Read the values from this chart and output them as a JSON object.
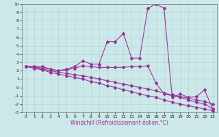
{
  "xlabel": "Windchill (Refroidissement éolien,°C)",
  "bg_color": "#cce8e8",
  "line_color": "#993399",
  "marker": "D",
  "markersize": 2.0,
  "linewidth": 0.8,
  "xlim": [
    -0.5,
    23.5
  ],
  "ylim": [
    -3,
    10
  ],
  "yticks": [
    -3,
    -2,
    -1,
    0,
    1,
    2,
    3,
    4,
    5,
    6,
    7,
    8,
    9,
    10
  ],
  "xticks": [
    0,
    1,
    2,
    3,
    4,
    5,
    6,
    7,
    8,
    9,
    10,
    11,
    12,
    13,
    14,
    15,
    16,
    17,
    18,
    19,
    20,
    21,
    22,
    23
  ],
  "series1": [
    2.5,
    2.5,
    2.5,
    2.2,
    2.0,
    2.2,
    2.5,
    3.2,
    2.8,
    2.8,
    5.5,
    5.5,
    6.5,
    3.5,
    3.5,
    9.5,
    10.0,
    9.5,
    -1.2,
    -0.8,
    -1.2,
    -1.1,
    -0.3,
    -2.6
  ],
  "series2": [
    2.5,
    2.5,
    2.3,
    2.2,
    2.0,
    2.1,
    2.3,
    2.6,
    2.5,
    2.4,
    2.4,
    2.4,
    2.4,
    2.5,
    2.5,
    2.6,
    0.5,
    -0.8,
    -1.0,
    -1.2,
    -1.5,
    -1.8,
    -2.0,
    -2.6
  ],
  "series3": [
    2.5,
    2.4,
    2.2,
    2.0,
    1.8,
    1.7,
    1.5,
    1.4,
    1.2,
    1.0,
    0.8,
    0.6,
    0.4,
    0.2,
    0.0,
    -0.2,
    -0.4,
    -0.7,
    -0.9,
    -1.1,
    -1.3,
    -1.5,
    -1.7,
    -2.0
  ],
  "series4": [
    2.5,
    2.3,
    2.1,
    1.8,
    1.6,
    1.4,
    1.2,
    1.0,
    0.7,
    0.5,
    0.2,
    0.0,
    -0.3,
    -0.5,
    -0.8,
    -1.0,
    -1.2,
    -1.5,
    -1.8,
    -2.0,
    -2.2,
    -2.4,
    -2.6,
    -2.8
  ]
}
